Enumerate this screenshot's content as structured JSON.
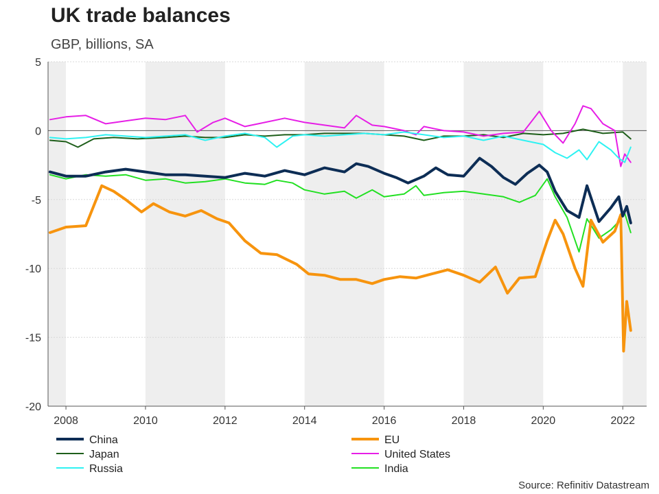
{
  "header": {
    "title": "UK trade balances",
    "subtitle": "GBP, billions, SA"
  },
  "footer": {
    "source": "Source: Refinitiv Datastream"
  },
  "chart_data": {
    "type": "line",
    "title": "UK trade balances",
    "subtitle": "GBP, billions, SA",
    "xlabel": "",
    "ylabel": "",
    "xlim": [
      2007.55,
      2022.6
    ],
    "ylim": [
      -20,
      5
    ],
    "x_ticks": [
      2008,
      2010,
      2012,
      2014,
      2016,
      2018,
      2020,
      2022
    ],
    "x_tick_labels": [
      "2008",
      "2010",
      "2012",
      "2014",
      "2016",
      "2018",
      "2020",
      "2022"
    ],
    "y_ticks": [
      5,
      0,
      -5,
      -10,
      -15,
      -20
    ],
    "y_tick_labels": [
      "5",
      "0",
      "-5",
      "-10",
      "-15",
      "-20"
    ],
    "shaded_bands": [
      [
        2007.55,
        2008.0
      ],
      [
        2010.0,
        2012.0
      ],
      [
        2014.0,
        2016.0
      ],
      [
        2018.0,
        2020.0
      ],
      [
        2022.0,
        2022.6
      ]
    ],
    "grid": true,
    "legend_position": "bottom",
    "series": [
      {
        "name": "China",
        "color": "#0d2d55",
        "width": 4,
        "points": [
          [
            2007.6,
            -3.0
          ],
          [
            2008.0,
            -3.3
          ],
          [
            2008.5,
            -3.3
          ],
          [
            2009.0,
            -3.0
          ],
          [
            2009.5,
            -2.8
          ],
          [
            2010.0,
            -3.0
          ],
          [
            2010.5,
            -3.2
          ],
          [
            2011.0,
            -3.2
          ],
          [
            2011.5,
            -3.3
          ],
          [
            2012.0,
            -3.4
          ],
          [
            2012.5,
            -3.1
          ],
          [
            2013.0,
            -3.3
          ],
          [
            2013.5,
            -2.9
          ],
          [
            2014.0,
            -3.2
          ],
          [
            2014.5,
            -2.7
          ],
          [
            2015.0,
            -3.0
          ],
          [
            2015.3,
            -2.4
          ],
          [
            2015.6,
            -2.6
          ],
          [
            2016.0,
            -3.1
          ],
          [
            2016.3,
            -3.4
          ],
          [
            2016.6,
            -3.8
          ],
          [
            2017.0,
            -3.3
          ],
          [
            2017.3,
            -2.7
          ],
          [
            2017.6,
            -3.2
          ],
          [
            2018.0,
            -3.3
          ],
          [
            2018.4,
            -2.0
          ],
          [
            2018.7,
            -2.6
          ],
          [
            2019.0,
            -3.4
          ],
          [
            2019.3,
            -3.9
          ],
          [
            2019.6,
            -3.1
          ],
          [
            2019.9,
            -2.5
          ],
          [
            2020.1,
            -3.0
          ],
          [
            2020.3,
            -4.4
          ],
          [
            2020.6,
            -5.8
          ],
          [
            2020.9,
            -6.3
          ],
          [
            2021.1,
            -4.0
          ],
          [
            2021.4,
            -6.6
          ],
          [
            2021.7,
            -5.6
          ],
          [
            2021.9,
            -4.8
          ],
          [
            2022.0,
            -6.2
          ],
          [
            2022.1,
            -5.5
          ],
          [
            2022.2,
            -6.7
          ]
        ]
      },
      {
        "name": "EU",
        "color": "#f7940e",
        "width": 4,
        "points": [
          [
            2007.6,
            -7.4
          ],
          [
            2008.0,
            -7.0
          ],
          [
            2008.5,
            -6.9
          ],
          [
            2008.9,
            -4.0
          ],
          [
            2009.2,
            -4.4
          ],
          [
            2009.5,
            -5.0
          ],
          [
            2009.9,
            -5.9
          ],
          [
            2010.2,
            -5.3
          ],
          [
            2010.6,
            -5.9
          ],
          [
            2011.0,
            -6.2
          ],
          [
            2011.4,
            -5.8
          ],
          [
            2011.8,
            -6.4
          ],
          [
            2012.1,
            -6.7
          ],
          [
            2012.5,
            -8.0
          ],
          [
            2012.9,
            -8.9
          ],
          [
            2013.3,
            -9.0
          ],
          [
            2013.8,
            -9.7
          ],
          [
            2014.1,
            -10.4
          ],
          [
            2014.5,
            -10.5
          ],
          [
            2014.9,
            -10.8
          ],
          [
            2015.3,
            -10.8
          ],
          [
            2015.7,
            -11.1
          ],
          [
            2016.0,
            -10.8
          ],
          [
            2016.4,
            -10.6
          ],
          [
            2016.8,
            -10.7
          ],
          [
            2017.2,
            -10.4
          ],
          [
            2017.6,
            -10.1
          ],
          [
            2018.0,
            -10.5
          ],
          [
            2018.4,
            -11.0
          ],
          [
            2018.8,
            -9.9
          ],
          [
            2019.1,
            -11.8
          ],
          [
            2019.4,
            -10.7
          ],
          [
            2019.8,
            -10.6
          ],
          [
            2020.1,
            -8.0
          ],
          [
            2020.3,
            -6.5
          ],
          [
            2020.5,
            -7.5
          ],
          [
            2020.8,
            -10.0
          ],
          [
            2021.0,
            -11.3
          ],
          [
            2021.2,
            -6.5
          ],
          [
            2021.5,
            -8.1
          ],
          [
            2021.8,
            -7.3
          ],
          [
            2021.95,
            -6.1
          ],
          [
            2022.02,
            -16.0
          ],
          [
            2022.1,
            -12.4
          ],
          [
            2022.2,
            -14.5
          ]
        ]
      },
      {
        "name": "Japan",
        "color": "#1e5e1a",
        "width": 2,
        "points": [
          [
            2007.6,
            -0.7
          ],
          [
            2008.0,
            -0.8
          ],
          [
            2008.3,
            -1.2
          ],
          [
            2008.7,
            -0.6
          ],
          [
            2009.2,
            -0.5
          ],
          [
            2009.8,
            -0.6
          ],
          [
            2010.5,
            -0.5
          ],
          [
            2011.0,
            -0.4
          ],
          [
            2011.5,
            -0.5
          ],
          [
            2012.0,
            -0.5
          ],
          [
            2012.5,
            -0.3
          ],
          [
            2013.0,
            -0.4
          ],
          [
            2013.5,
            -0.3
          ],
          [
            2014.0,
            -0.3
          ],
          [
            2014.5,
            -0.2
          ],
          [
            2015.0,
            -0.2
          ],
          [
            2015.5,
            -0.2
          ],
          [
            2016.0,
            -0.3
          ],
          [
            2016.5,
            -0.4
          ],
          [
            2017.0,
            -0.7
          ],
          [
            2017.5,
            -0.4
          ],
          [
            2018.0,
            -0.4
          ],
          [
            2018.5,
            -0.3
          ],
          [
            2019.0,
            -0.5
          ],
          [
            2019.5,
            -0.2
          ],
          [
            2020.0,
            -0.3
          ],
          [
            2020.5,
            -0.2
          ],
          [
            2021.0,
            0.1
          ],
          [
            2021.5,
            -0.2
          ],
          [
            2022.0,
            -0.1
          ],
          [
            2022.2,
            -0.6
          ]
        ]
      },
      {
        "name": "United States",
        "color": "#e61ee6",
        "width": 2,
        "points": [
          [
            2007.6,
            0.8
          ],
          [
            2008.0,
            1.0
          ],
          [
            2008.5,
            1.1
          ],
          [
            2009.0,
            0.5
          ],
          [
            2009.5,
            0.7
          ],
          [
            2010.0,
            0.9
          ],
          [
            2010.5,
            0.8
          ],
          [
            2011.0,
            1.1
          ],
          [
            2011.3,
            -0.1
          ],
          [
            2011.7,
            0.6
          ],
          [
            2012.0,
            0.9
          ],
          [
            2012.5,
            0.3
          ],
          [
            2013.0,
            0.6
          ],
          [
            2013.5,
            0.9
          ],
          [
            2014.0,
            0.6
          ],
          [
            2014.5,
            0.4
          ],
          [
            2015.0,
            0.2
          ],
          [
            2015.3,
            1.1
          ],
          [
            2015.7,
            0.4
          ],
          [
            2016.0,
            0.3
          ],
          [
            2016.5,
            0.0
          ],
          [
            2016.8,
            -0.3
          ],
          [
            2017.0,
            0.3
          ],
          [
            2017.5,
            0.0
          ],
          [
            2018.0,
            -0.1
          ],
          [
            2018.5,
            -0.4
          ],
          [
            2019.0,
            -0.2
          ],
          [
            2019.5,
            -0.1
          ],
          [
            2019.9,
            1.4
          ],
          [
            2020.2,
            0.0
          ],
          [
            2020.5,
            -0.9
          ],
          [
            2020.8,
            0.5
          ],
          [
            2021.0,
            1.8
          ],
          [
            2021.2,
            1.6
          ],
          [
            2021.5,
            0.5
          ],
          [
            2021.8,
            0.0
          ],
          [
            2021.95,
            -2.6
          ],
          [
            2022.05,
            -1.7
          ],
          [
            2022.2,
            -2.3
          ]
        ]
      },
      {
        "name": "Russia",
        "color": "#2ef2f2",
        "width": 2,
        "points": [
          [
            2007.6,
            -0.5
          ],
          [
            2008.0,
            -0.6
          ],
          [
            2008.5,
            -0.5
          ],
          [
            2009.0,
            -0.3
          ],
          [
            2009.5,
            -0.4
          ],
          [
            2010.0,
            -0.5
          ],
          [
            2010.5,
            -0.4
          ],
          [
            2011.0,
            -0.3
          ],
          [
            2011.5,
            -0.7
          ],
          [
            2012.0,
            -0.4
          ],
          [
            2012.5,
            -0.2
          ],
          [
            2013.0,
            -0.5
          ],
          [
            2013.3,
            -1.2
          ],
          [
            2013.7,
            -0.4
          ],
          [
            2014.0,
            -0.3
          ],
          [
            2014.5,
            -0.4
          ],
          [
            2015.0,
            -0.3
          ],
          [
            2015.5,
            -0.2
          ],
          [
            2016.0,
            -0.3
          ],
          [
            2016.5,
            -0.1
          ],
          [
            2017.0,
            -0.3
          ],
          [
            2017.5,
            -0.5
          ],
          [
            2018.0,
            -0.4
          ],
          [
            2018.5,
            -0.7
          ],
          [
            2019.0,
            -0.4
          ],
          [
            2019.5,
            -0.7
          ],
          [
            2020.0,
            -1.0
          ],
          [
            2020.3,
            -1.6
          ],
          [
            2020.6,
            -2.0
          ],
          [
            2020.9,
            -1.4
          ],
          [
            2021.1,
            -2.1
          ],
          [
            2021.4,
            -0.8
          ],
          [
            2021.7,
            -1.4
          ],
          [
            2021.9,
            -2.0
          ],
          [
            2022.05,
            -2.3
          ],
          [
            2022.2,
            -1.2
          ]
        ]
      },
      {
        "name": "India",
        "color": "#22e022",
        "width": 2,
        "points": [
          [
            2007.6,
            -3.2
          ],
          [
            2008.0,
            -3.5
          ],
          [
            2008.5,
            -3.2
          ],
          [
            2009.0,
            -3.3
          ],
          [
            2009.5,
            -3.2
          ],
          [
            2010.0,
            -3.6
          ],
          [
            2010.5,
            -3.5
          ],
          [
            2011.0,
            -3.8
          ],
          [
            2011.5,
            -3.7
          ],
          [
            2012.0,
            -3.5
          ],
          [
            2012.5,
            -3.8
          ],
          [
            2013.0,
            -3.9
          ],
          [
            2013.3,
            -3.6
          ],
          [
            2013.7,
            -3.8
          ],
          [
            2014.0,
            -4.3
          ],
          [
            2014.5,
            -4.6
          ],
          [
            2015.0,
            -4.4
          ],
          [
            2015.3,
            -4.9
          ],
          [
            2015.7,
            -4.3
          ],
          [
            2016.0,
            -4.8
          ],
          [
            2016.5,
            -4.6
          ],
          [
            2016.8,
            -4.0
          ],
          [
            2017.0,
            -4.7
          ],
          [
            2017.5,
            -4.5
          ],
          [
            2018.0,
            -4.4
          ],
          [
            2018.5,
            -4.6
          ],
          [
            2019.0,
            -4.8
          ],
          [
            2019.4,
            -5.2
          ],
          [
            2019.8,
            -4.7
          ],
          [
            2020.1,
            -3.5
          ],
          [
            2020.3,
            -4.8
          ],
          [
            2020.6,
            -6.3
          ],
          [
            2020.9,
            -8.8
          ],
          [
            2021.1,
            -6.4
          ],
          [
            2021.4,
            -7.8
          ],
          [
            2021.7,
            -7.2
          ],
          [
            2021.9,
            -6.6
          ],
          [
            2022.05,
            -6.0
          ],
          [
            2022.2,
            -7.4
          ]
        ]
      }
    ]
  }
}
